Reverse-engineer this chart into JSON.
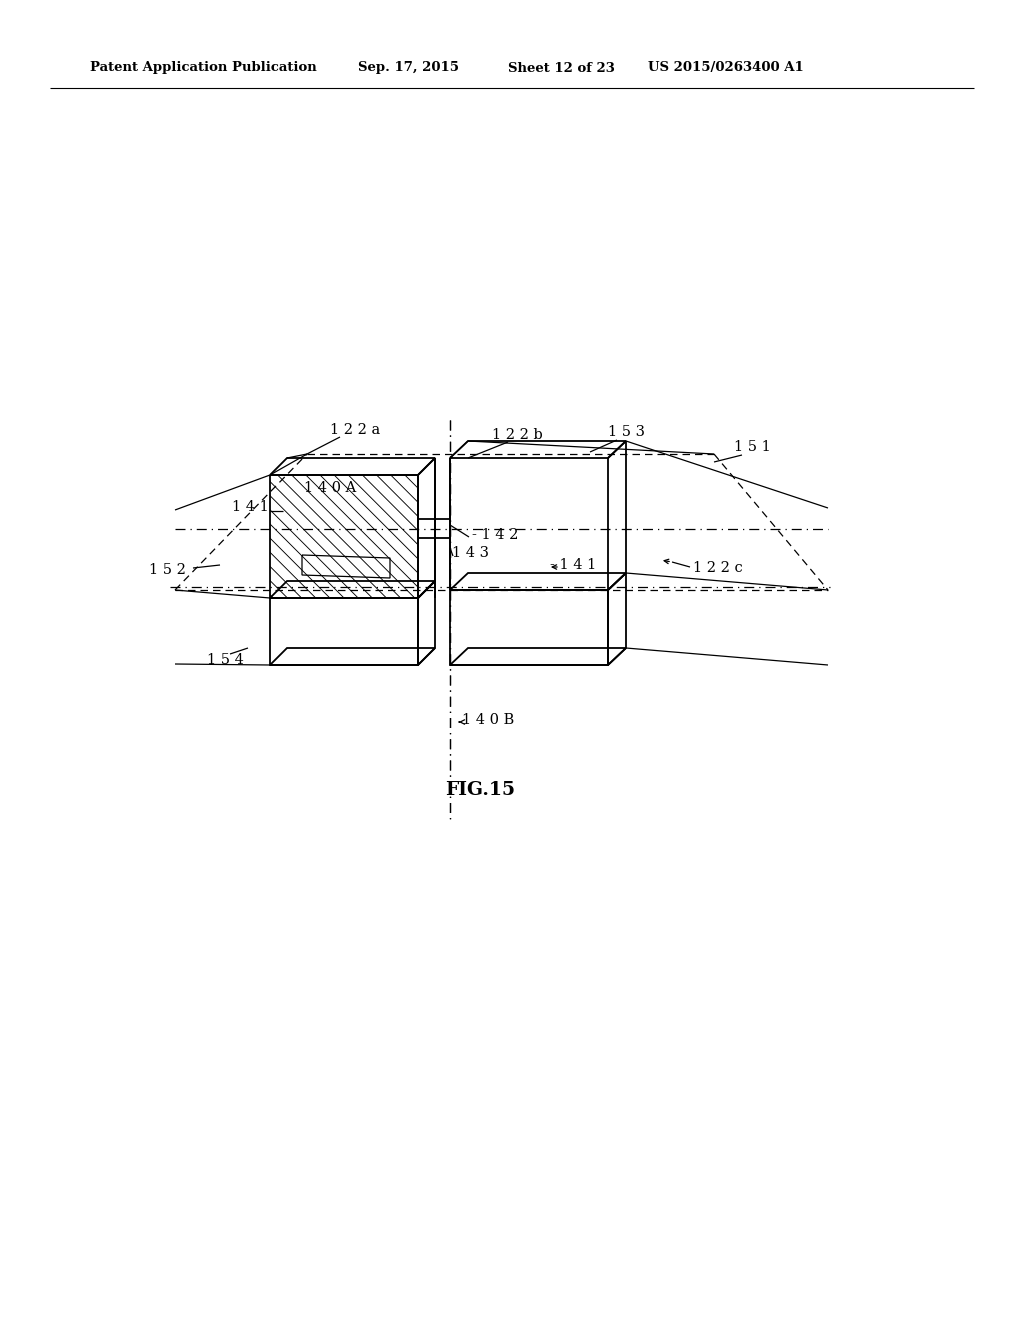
{
  "bg_color": "#ffffff",
  "line_color": "#000000",
  "header_text": "Patent Application Publication",
  "header_date": "Sep. 17, 2015",
  "header_sheet": "Sheet 12 of 23",
  "header_patent": "US 2015/0263400 A1",
  "fig_label": "FIG.15",
  "lw_main": 1.3,
  "lw_thin": 0.9,
  "lw_hatch": 0.65,
  "label_fs": 10.5,
  "header_fs": 9.5,
  "fig_label_fs": 13.5
}
